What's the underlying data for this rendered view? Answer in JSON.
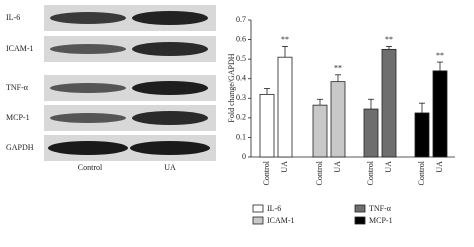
{
  "blot": {
    "rows": [
      "IL-6",
      "ICAM-1",
      "TNF-α",
      "MCP-1",
      "GAPDH"
    ],
    "columns": [
      "Control",
      "UA"
    ]
  },
  "chart_data": {
    "type": "bar",
    "y_label": "Fold change/GAPDH",
    "categories": [
      "Control",
      "UA"
    ],
    "series": [
      {
        "name": "IL-6",
        "color": "#ffffff",
        "values": [
          0.32,
          0.51
        ],
        "errors": [
          0.03,
          0.055
        ]
      },
      {
        "name": "ICAM-1",
        "color": "#c8c8c8",
        "values": [
          0.265,
          0.385
        ],
        "errors": [
          0.03,
          0.035
        ]
      },
      {
        "name": "TNF-α",
        "color": "#6e6e6e",
        "values": [
          0.245,
          0.55
        ],
        "errors": [
          0.05,
          0.015
        ]
      },
      {
        "name": "MCP-1",
        "color": "#000000",
        "values": [
          0.225,
          0.44
        ],
        "errors": [
          0.05,
          0.045
        ]
      }
    ],
    "annotations": [
      {
        "text": "**",
        "series": 0,
        "category": 1
      },
      {
        "text": "**",
        "series": 1,
        "category": 1
      },
      {
        "text": "**",
        "series": 2,
        "category": 1
      },
      {
        "text": "**",
        "series": 3,
        "category": 1
      }
    ],
    "ylim": [
      0,
      0.7
    ],
    "yticks": [
      0,
      0.1,
      0.2,
      0.3,
      0.4,
      0.5,
      0.6,
      0.7
    ]
  }
}
